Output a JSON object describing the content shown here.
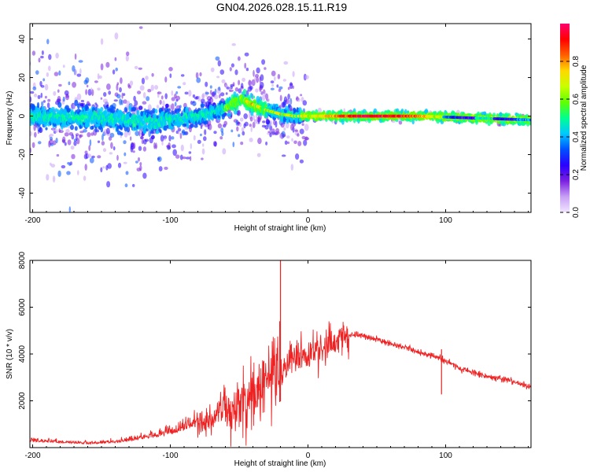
{
  "title": "GN04.2026.028.15.11.R19",
  "chart_data": [
    {
      "type": "heatmap",
      "xlabel": "Height of straight line (km)",
      "ylabel": "Frequency (Hz)",
      "xlim": [
        -202,
        162
      ],
      "ylim": [
        -50,
        48
      ],
      "xticks": [
        -200,
        -100,
        0,
        100
      ],
      "xtick_labels": [
        "-200",
        "-100",
        "0",
        "100"
      ],
      "yticks": [
        -40,
        -20,
        0,
        20,
        40
      ],
      "ytick_labels": [
        "-40",
        "-20",
        "0",
        "20",
        "40"
      ],
      "ridge": {
        "x": [
          -202,
          -150,
          -110,
          -80,
          -60,
          -48,
          -40,
          -30,
          -20,
          -10,
          0,
          40,
          80,
          120,
          162
        ],
        "freq": [
          0,
          -1,
          -3,
          0,
          4,
          9,
          6,
          3,
          1,
          0,
          0,
          0,
          0,
          -1,
          -2
        ]
      },
      "colorbar": {
        "label": "Normalized spectral amplitude",
        "range": [
          0,
          1
        ],
        "ticks": [
          0.0,
          0.2,
          0.4,
          0.6,
          0.8
        ],
        "tick_labels": [
          "0.0",
          "0.2",
          "0.4",
          "0.6",
          "0.8"
        ],
        "colormap": [
          "#f2e6ff",
          "#c8a0f5",
          "#7a20e0",
          "#2a00ff",
          "#0050ff",
          "#00c8ff",
          "#00ff90",
          "#60ff00",
          "#c8ff00",
          "#ffd800",
          "#ff6000",
          "#ff0000",
          "#ff0070"
        ]
      }
    },
    {
      "type": "line",
      "xlabel": "Height of straight line (km)",
      "ylabel": "SNR (10 * v/v)",
      "xlim": [
        -202,
        162
      ],
      "ylim": [
        0,
        8000
      ],
      "xticks": [
        -200,
        -100,
        0,
        100
      ],
      "xtick_labels": [
        "-200",
        "-100",
        "0",
        "100"
      ],
      "yticks": [
        2000,
        4000,
        6000,
        8000
      ],
      "ytick_labels": [
        "2000",
        "4000",
        "6000",
        "8000"
      ],
      "color": "#ee2222",
      "series": [
        {
          "name": "SNR",
          "x": [
            -202,
            -180,
            -160,
            -140,
            -120,
            -100,
            -80,
            -70,
            -60,
            -50,
            -40,
            -30,
            -22,
            -20,
            -15,
            -10,
            -5,
            0,
            10,
            20,
            30,
            35,
            45,
            60,
            80,
            95,
            100,
            110,
            130,
            150,
            162
          ],
          "y": [
            250,
            200,
            150,
            200,
            350,
            550,
            900,
            1200,
            1500,
            1900,
            2300,
            2800,
            3100,
            3300,
            3600,
            3800,
            3850,
            3900,
            4300,
            4600,
            4800,
            4850,
            4700,
            4450,
            4100,
            3850,
            3700,
            3400,
            3050,
            2800,
            2600
          ]
        }
      ],
      "spikes": [
        {
          "x": -20,
          "y": 8000
        },
        {
          "x": -20.5,
          "y": 5400
        },
        {
          "x": 97,
          "y": 4200
        }
      ]
    }
  ]
}
